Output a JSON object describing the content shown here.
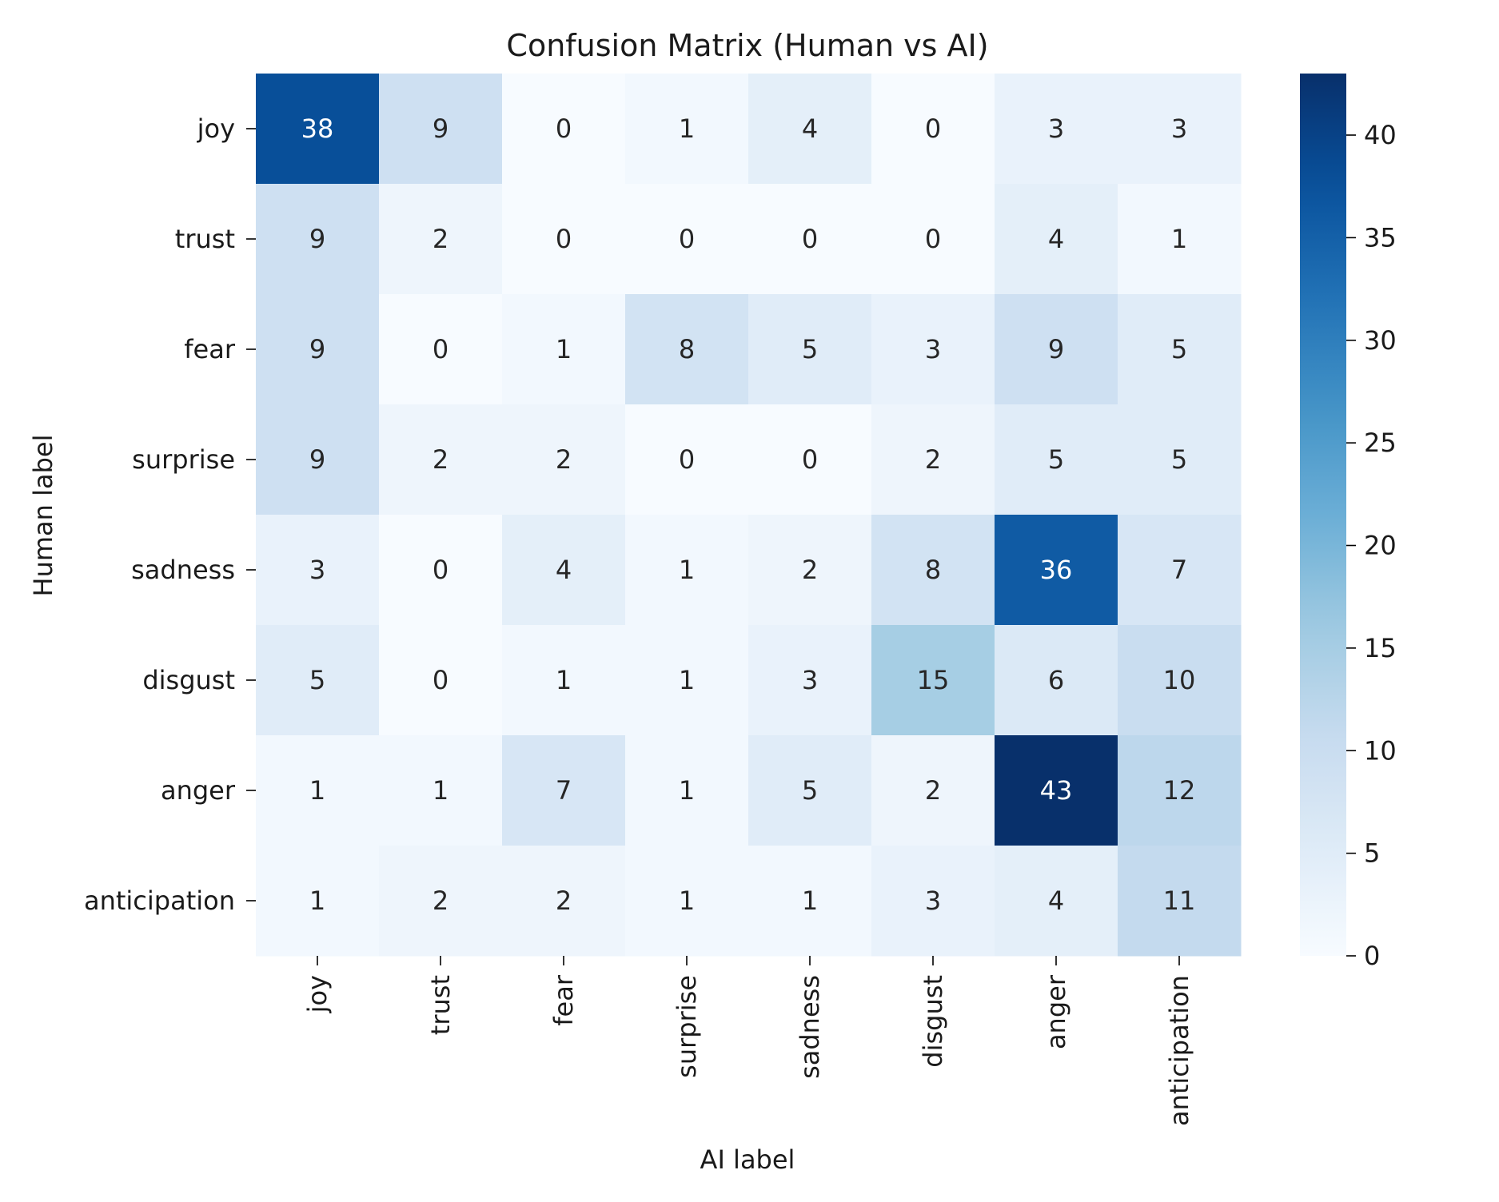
{
  "chart_data": {
    "type": "heatmap",
    "title": "Confusion Matrix (Human vs AI)",
    "xlabel": "AI label",
    "ylabel": "Human label",
    "x_categories": [
      "joy",
      "trust",
      "fear",
      "surprise",
      "sadness",
      "disgust",
      "anger",
      "anticipation"
    ],
    "y_categories": [
      "joy",
      "trust",
      "fear",
      "surprise",
      "sadness",
      "disgust",
      "anger",
      "anticipation"
    ],
    "values": [
      [
        38,
        9,
        0,
        1,
        4,
        0,
        3,
        3
      ],
      [
        9,
        2,
        0,
        0,
        0,
        0,
        4,
        1
      ],
      [
        9,
        0,
        1,
        8,
        5,
        3,
        9,
        5
      ],
      [
        9,
        2,
        2,
        0,
        0,
        2,
        5,
        5
      ],
      [
        3,
        0,
        4,
        1,
        2,
        8,
        36,
        7
      ],
      [
        5,
        0,
        1,
        1,
        3,
        15,
        6,
        10
      ],
      [
        1,
        1,
        7,
        1,
        5,
        2,
        43,
        12
      ],
      [
        1,
        2,
        2,
        1,
        1,
        3,
        4,
        11
      ]
    ],
    "colormap": "Blues",
    "colorbar": {
      "min": 0,
      "max": 43,
      "ticks": [
        0,
        5,
        10,
        15,
        20,
        25,
        30,
        35,
        40
      ]
    },
    "annotated": true,
    "grid": false
  }
}
